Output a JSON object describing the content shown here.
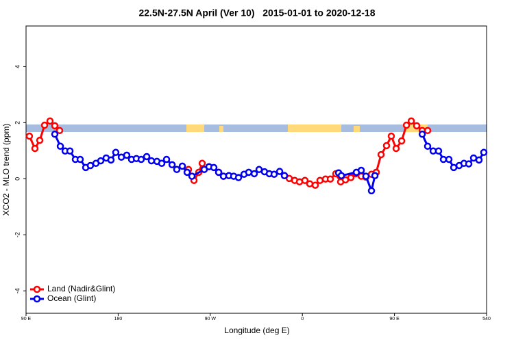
{
  "chart_data": {
    "type": "line",
    "title": "22.5N-27.5N April (Ver 10)   2015-01-01 to 2020-12-18",
    "xlabel": "Longitude (deg E)",
    "ylabel": "XCO2 - MLO trend (ppm)",
    "xlim": [
      90,
      540
    ],
    "ylim": [
      -4.8,
      5.45
    ],
    "xticks": [
      {
        "value": 90,
        "label": "90 E"
      },
      180,
      {
        "value": 270,
        "label": "90 W"
      },
      {
        "value": 360,
        "label": "0"
      },
      {
        "value": 450,
        "label": "90 E"
      },
      540
    ],
    "yticks": [
      -4,
      -2,
      0,
      2,
      4
    ],
    "legend": "bottom-left",
    "series": [
      {
        "name": "Land (Nadir&Glint)",
        "color": "#ff0000",
        "x": [
          93.3,
          98.7,
          103.4,
          108.1,
          113.4,
          118.1,
          122.8,
          null,
          248.7,
          254.1,
          258.8,
          262.1,
          null,
          278.2,
          282.9,
          null,
          342.5,
          347.2,
          352.5,
          357.2,
          362.5,
          367.2,
          372.6,
          377.2,
          382.6,
          387.3,
          392.7,
          397.4,
          402.1,
          407.4,
          412.1,
          417.5,
          422.1,
          427.5,
          432.2,
          436.9,
          442.2,
          446.9,
          451.6,
          457.0,
          461.7,
          466.4,
          471.7,
          477.1,
          482.4
        ],
        "values": [
          1.52,
          1.08,
          1.37,
          1.91,
          2.06,
          1.89,
          1.72,
          null,
          0.33,
          -0.06,
          0.23,
          0.55,
          null,
          0.23,
          0.09,
          null,
          0.11,
          0.01,
          -0.06,
          -0.11,
          -0.06,
          -0.18,
          -0.23,
          -0.06,
          -0.01,
          -0.01,
          0.18,
          -0.11,
          -0.04,
          0.04,
          0.18,
          0.09,
          0.06,
          0.16,
          0.23,
          0.86,
          1.18,
          1.52,
          1.08,
          1.35,
          1.91,
          2.06,
          1.89,
          1.72,
          1.72
        ]
      },
      {
        "name": "Ocean (Glint)",
        "color": "#0000ee",
        "x": [
          118.1,
          123.5,
          128.2,
          132.9,
          138.2,
          142.9,
          148.3,
          152.9,
          158.3,
          163.0,
          168.3,
          173.0,
          177.7,
          183.1,
          188.4,
          193.1,
          197.8,
          202.5,
          207.9,
          212.5,
          217.9,
          222.6,
          227.3,
          232.7,
          237.3,
          242.7,
          247.4,
          252.1,
          264.1,
          268.8,
          273.5,
          278.2,
          282.9,
          288.2,
          292.9,
          297.6,
          303.0,
          307.6,
          313.0,
          317.7,
          323.0,
          327.7,
          332.4,
          337.8,
          342.5,
          null,
          395.4,
          398.1,
          412.8,
          417.5,
          422.1,
          427.5,
          430.9,
          null,
          477.1,
          482.4,
          487.8,
          493.1,
          497.8,
          503.2,
          507.9,
          513.2,
          517.9,
          522.6,
          527.3,
          532.6,
          537.3
        ],
        "values": [
          1.59,
          1.16,
          0.99,
          0.99,
          0.69,
          0.69,
          0.4,
          0.47,
          0.55,
          0.64,
          0.74,
          0.67,
          0.94,
          0.77,
          0.84,
          0.69,
          0.72,
          0.69,
          0.79,
          0.64,
          0.62,
          0.55,
          0.69,
          0.5,
          0.33,
          0.45,
          0.23,
          0.09,
          0.33,
          0.43,
          0.4,
          0.23,
          0.09,
          0.11,
          0.09,
          0.04,
          0.16,
          0.23,
          0.18,
          0.33,
          0.25,
          0.18,
          0.16,
          0.26,
          0.11,
          null,
          0.21,
          0.11,
          0.23,
          0.3,
          0.09,
          -0.43,
          0.11,
          null,
          1.59,
          1.16,
          0.99,
          0.99,
          0.69,
          0.69,
          0.4,
          0.47,
          0.55,
          0.53,
          0.74,
          0.67,
          0.94
        ]
      }
    ]
  }
}
